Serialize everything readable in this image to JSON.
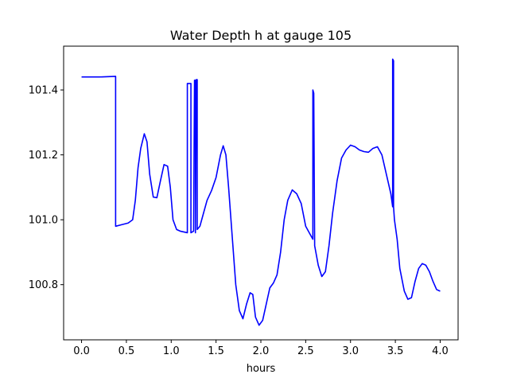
{
  "chart_data": {
    "type": "line",
    "title": "Water Depth h at gauge 105",
    "xlabel": "hours",
    "ylabel": "",
    "xlim": [
      -0.2,
      4.2
    ],
    "ylim": [
      100.63,
      101.535
    ],
    "xticks": [
      0.0,
      0.5,
      1.0,
      1.5,
      2.0,
      2.5,
      3.0,
      3.5,
      4.0
    ],
    "xtick_labels": [
      "0.0",
      "0.5",
      "1.0",
      "1.5",
      "2.0",
      "2.5",
      "3.0",
      "3.5",
      "4.0"
    ],
    "yticks": [
      100.8,
      101.0,
      101.2,
      101.4
    ],
    "ytick_labels": [
      "100.8",
      "101.0",
      "101.2",
      "101.4"
    ],
    "grid": false,
    "series": [
      {
        "color": "#0000ff",
        "points": [
          [
            0.0,
            101.44
          ],
          [
            0.2,
            101.44
          ],
          [
            0.38,
            101.442
          ],
          [
            0.38,
            100.98
          ],
          [
            0.45,
            100.985
          ],
          [
            0.52,
            100.99
          ],
          [
            0.57,
            101.0
          ],
          [
            0.6,
            101.06
          ],
          [
            0.63,
            101.16
          ],
          [
            0.66,
            101.22
          ],
          [
            0.7,
            101.265
          ],
          [
            0.73,
            101.24
          ],
          [
            0.76,
            101.14
          ],
          [
            0.8,
            101.07
          ],
          [
            0.84,
            101.068
          ],
          [
            0.88,
            101.12
          ],
          [
            0.92,
            101.17
          ],
          [
            0.96,
            101.165
          ],
          [
            0.99,
            101.1
          ],
          [
            1.02,
            101.0
          ],
          [
            1.06,
            100.97
          ],
          [
            1.1,
            100.965
          ],
          [
            1.18,
            100.96
          ],
          [
            1.18,
            101.42
          ],
          [
            1.22,
            101.42
          ],
          [
            1.22,
            100.96
          ],
          [
            1.25,
            100.965
          ],
          [
            1.26,
            101.43
          ],
          [
            1.27,
            101.43
          ],
          [
            1.27,
            100.96
          ],
          [
            1.28,
            101.432
          ],
          [
            1.29,
            101.432
          ],
          [
            1.29,
            100.97
          ],
          [
            1.32,
            100.98
          ],
          [
            1.36,
            101.02
          ],
          [
            1.4,
            101.06
          ],
          [
            1.45,
            101.09
          ],
          [
            1.5,
            101.13
          ],
          [
            1.55,
            101.2
          ],
          [
            1.58,
            101.228
          ],
          [
            1.61,
            101.2
          ],
          [
            1.64,
            101.1
          ],
          [
            1.68,
            100.95
          ],
          [
            1.72,
            100.8
          ],
          [
            1.76,
            100.72
          ],
          [
            1.8,
            100.695
          ],
          [
            1.84,
            100.74
          ],
          [
            1.88,
            100.775
          ],
          [
            1.91,
            100.77
          ],
          [
            1.94,
            100.7
          ],
          [
            1.98,
            100.675
          ],
          [
            2.02,
            100.69
          ],
          [
            2.06,
            100.74
          ],
          [
            2.1,
            100.79
          ],
          [
            2.14,
            100.805
          ],
          [
            2.18,
            100.83
          ],
          [
            2.22,
            100.9
          ],
          [
            2.26,
            101.0
          ],
          [
            2.3,
            101.06
          ],
          [
            2.35,
            101.092
          ],
          [
            2.4,
            101.08
          ],
          [
            2.45,
            101.05
          ],
          [
            2.5,
            100.98
          ],
          [
            2.54,
            100.96
          ],
          [
            2.58,
            100.94
          ],
          [
            2.58,
            101.4
          ],
          [
            2.59,
            101.39
          ],
          [
            2.6,
            100.92
          ],
          [
            2.64,
            100.86
          ],
          [
            2.68,
            100.825
          ],
          [
            2.72,
            100.84
          ],
          [
            2.76,
            100.92
          ],
          [
            2.8,
            101.02
          ],
          [
            2.85,
            101.12
          ],
          [
            2.9,
            101.19
          ],
          [
            2.95,
            101.215
          ],
          [
            3.0,
            101.23
          ],
          [
            3.05,
            101.225
          ],
          [
            3.1,
            101.215
          ],
          [
            3.15,
            101.21
          ],
          [
            3.2,
            101.208
          ],
          [
            3.25,
            101.22
          ],
          [
            3.3,
            101.225
          ],
          [
            3.35,
            101.2
          ],
          [
            3.4,
            101.14
          ],
          [
            3.45,
            101.08
          ],
          [
            3.47,
            101.04
          ],
          [
            3.47,
            101.495
          ],
          [
            3.48,
            101.49
          ],
          [
            3.48,
            101.04
          ],
          [
            3.49,
            101.0
          ],
          [
            3.52,
            100.94
          ],
          [
            3.55,
            100.85
          ],
          [
            3.6,
            100.78
          ],
          [
            3.64,
            100.755
          ],
          [
            3.68,
            100.76
          ],
          [
            3.72,
            100.81
          ],
          [
            3.76,
            100.85
          ],
          [
            3.8,
            100.865
          ],
          [
            3.84,
            100.86
          ],
          [
            3.88,
            100.84
          ],
          [
            3.92,
            100.81
          ],
          [
            3.96,
            100.785
          ],
          [
            4.0,
            100.78
          ]
        ]
      }
    ]
  }
}
